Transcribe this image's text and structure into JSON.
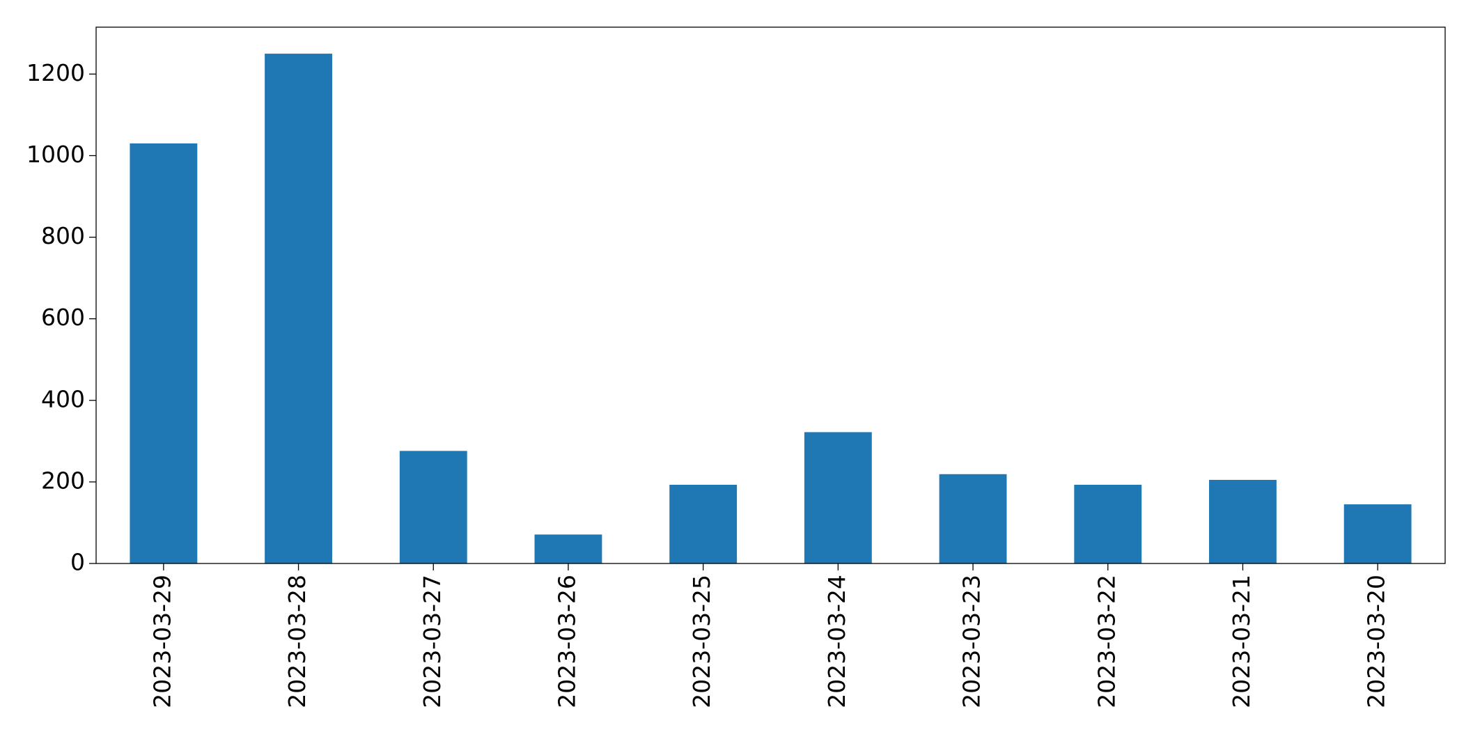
{
  "chart_data": {
    "type": "bar",
    "categories": [
      "2023-03-29",
      "2023-03-28",
      "2023-03-27",
      "2023-03-26",
      "2023-03-25",
      "2023-03-24",
      "2023-03-23",
      "2023-03-22",
      "2023-03-21",
      "2023-03-20"
    ],
    "values": [
      1030,
      1250,
      276,
      71,
      193,
      322,
      219,
      193,
      205,
      145
    ],
    "color": "#1f77b4",
    "ylim": [
      0,
      1315
    ],
    "yticks": [
      0,
      200,
      400,
      600,
      800,
      1000,
      1200
    ],
    "grid": false
  }
}
